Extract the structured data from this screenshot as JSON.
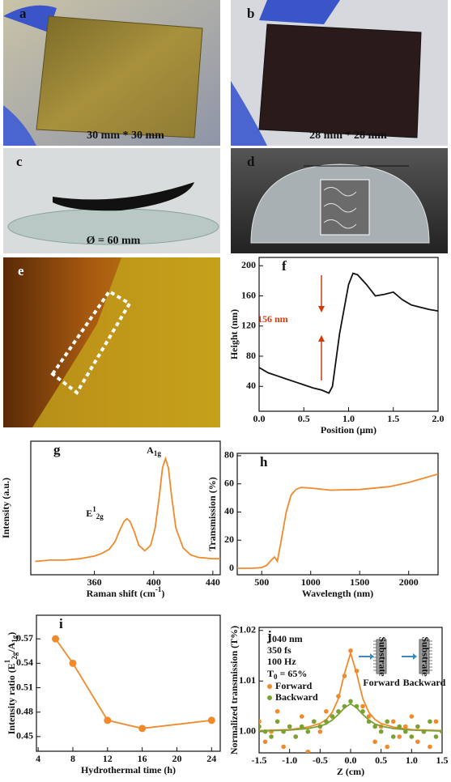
{
  "photos": [
    {
      "label": "a",
      "caption": "30 mm * 30 mm"
    },
    {
      "label": "b",
      "caption": "28 mm * 28 mm"
    },
    {
      "label": "c",
      "caption": "Ø = 60 mm"
    },
    {
      "label": "d"
    },
    {
      "label": "e"
    }
  ],
  "chart_data": [
    {
      "type": "line",
      "label": "f",
      "xlabel": "Position (μm)",
      "ylabel": "Height (nm)",
      "color": "#111111",
      "xlim": [
        0,
        2
      ],
      "ylim": [
        7,
        211
      ],
      "xticks": [
        {
          "value": 0,
          "label": "0.0"
        },
        0.5,
        {
          "value": 1,
          "label": "1.0"
        },
        1.5,
        {
          "value": 2,
          "label": "2.0"
        }
      ],
      "yticks": [
        40,
        80,
        120,
        160,
        200
      ],
      "annotations": [
        "156 nm"
      ],
      "series": [
        {
          "x": [
            0,
            0.1,
            0.2,
            0.3,
            0.4,
            0.5,
            0.6,
            0.7,
            0.78,
            0.82,
            0.9,
            1.0,
            1.05,
            1.1,
            1.2,
            1.3,
            1.4,
            1.5,
            1.6,
            1.7,
            1.8,
            1.9,
            2.0
          ],
          "values": [
            65,
            58,
            54,
            50,
            46,
            42,
            38,
            35,
            31,
            40,
            110,
            175,
            190,
            188,
            175,
            160,
            162,
            165,
            155,
            148,
            145,
            142,
            140
          ],
          "color": "#111111"
        }
      ]
    },
    {
      "type": "line",
      "label": "g",
      "xlabel": [
        {
          "t": "Raman shift (cm"
        },
        {
          "t": "-1",
          "s": "sup"
        },
        {
          "t": ")"
        }
      ],
      "ylabel": "Intensity (a.u.)",
      "xlim": [
        317,
        445
      ],
      "ylim": [
        0,
        1
      ],
      "xticks": [
        360,
        400,
        440
      ],
      "annotations": [
        [
          {
            "t": "E"
          },
          {
            "t": "1",
            "s": "sup"
          },
          {
            "t": "2g",
            "s": "sub"
          }
        ],
        [
          {
            "t": "A"
          },
          {
            "t": "1g",
            "s": "sub"
          }
        ]
      ],
      "series": [
        {
          "color": "#f08a2c",
          "x": [
            320,
            330,
            340,
            350,
            360,
            365,
            370,
            374,
            377,
            380,
            382,
            384,
            387,
            390,
            394,
            398,
            401,
            404,
            406,
            408,
            410,
            412,
            415,
            420,
            425,
            430,
            440,
            445
          ],
          "values": [
            0.1,
            0.11,
            0.11,
            0.12,
            0.14,
            0.16,
            0.19,
            0.25,
            0.33,
            0.4,
            0.42,
            0.4,
            0.32,
            0.22,
            0.18,
            0.22,
            0.35,
            0.6,
            0.8,
            0.87,
            0.8,
            0.6,
            0.35,
            0.2,
            0.15,
            0.13,
            0.12,
            0.12
          ]
        }
      ]
    },
    {
      "type": "line",
      "label": "h",
      "xlabel": "Wavelength (nm)",
      "ylabel": "Transmission (%)",
      "xlim": [
        250,
        2300
      ],
      "ylim": [
        -4.6,
        81.7
      ],
      "xticks": [
        500,
        1000,
        1500,
        2000
      ],
      "yticks": [
        0,
        20,
        40,
        60,
        80
      ],
      "series": [
        {
          "color": "#f08a2c",
          "x": [
            250,
            400,
            500,
            550,
            600,
            630,
            660,
            700,
            750,
            800,
            850,
            900,
            1000,
            1200,
            1500,
            1800,
            2000,
            2300
          ],
          "values": [
            0,
            0,
            0.5,
            2,
            6,
            8,
            5,
            20,
            40,
            52,
            56,
            57.5,
            57,
            55.5,
            56,
            58,
            61,
            67
          ]
        }
      ]
    },
    {
      "type": "line",
      "label": "i",
      "markers": true,
      "xlabel": "Hydrothermal time (h)",
      "ylabel": [
        {
          "t": "Intensity ratio (E"
        },
        {
          "t": "1",
          "s": "sup"
        },
        {
          "t": "2g",
          "s": "sub"
        },
        {
          "t": "/A"
        },
        {
          "t": "1g",
          "s": "sub"
        },
        {
          "t": ")"
        }
      ],
      "xlim": [
        3.8,
        25
      ],
      "ylim": [
        0.432,
        0.599
      ],
      "xticks": [
        4,
        8,
        12,
        16,
        20,
        24
      ],
      "yticks": [
        0.45,
        0.48,
        0.51,
        0.54,
        0.57
      ],
      "series": [
        {
          "color": "#f08a2c",
          "x": [
            6,
            8,
            12,
            16,
            24
          ],
          "values": [
            0.57,
            0.54,
            0.47,
            0.46,
            0.47
          ]
        }
      ]
    },
    {
      "type": "scatter",
      "label": "j",
      "xlabel": "Z (cm)",
      "ylabel": "Normalized transmission (T%)",
      "xlim": [
        -1.5,
        1.5
      ],
      "ylim": [
        0.9958,
        1.0206
      ],
      "xticks": [
        -1.5,
        {
          "value": -1,
          "label": "-1.0"
        },
        -0.5,
        {
          "value": 0,
          "label": "0.0"
        },
        0.5,
        {
          "value": 1,
          "label": "1.0"
        },
        1.5
      ],
      "yticks": [
        {
          "value": 1,
          "label": "1.00"
        },
        {
          "value": 1.01,
          "label": "1.01"
        },
        {
          "value": 1.02,
          "label": "1.02"
        }
      ],
      "annotations": [
        "1040 nm",
        "350 fs",
        "100 Hz",
        [
          {
            "t": "T"
          },
          {
            "t": "0",
            "s": "sub"
          },
          {
            "t": " = 65%"
          }
        ]
      ],
      "inset_labels": [
        "Substrate",
        "Substrate",
        "Forward",
        "Backward"
      ],
      "series": [
        {
          "name": "Forward",
          "color": "#f08a2c",
          "x": [
            -1.5,
            -1.4,
            -1.3,
            -1.2,
            -1.1,
            -1.0,
            -0.9,
            -0.8,
            -0.7,
            -0.6,
            -0.5,
            -0.4,
            -0.3,
            -0.2,
            -0.1,
            0,
            0.1,
            0.2,
            0.3,
            0.4,
            0.5,
            0.6,
            0.7,
            0.8,
            0.9,
            1.0,
            1.1,
            1.2,
            1.3,
            1.4,
            1.5
          ],
          "values": [
            1.002,
            0.998,
            1.0,
            1.004,
            0.997,
            1.001,
            0.999,
            1.003,
            0.996,
            1.002,
            1.0,
            1.004,
            1.003,
            1.007,
            1.011,
            1.016,
            1.012,
            1.005,
            1.003,
            0.998,
            1.001,
            0.997,
            1.002,
            0.999,
            1.001,
            1.003,
            0.998,
            1.0,
            0.997,
            1.002,
            1.0
          ],
          "fit": {
            "x": [
              -1.5,
              -1.0,
              -0.7,
              -0.5,
              -0.4,
              -0.3,
              -0.2,
              -0.1,
              0,
              0.1,
              0.2,
              0.3,
              0.4,
              0.5,
              0.7,
              1.0,
              1.5
            ],
            "values": [
              1.0002,
              1.0004,
              1.0009,
              1.0016,
              1.0024,
              1.0038,
              1.0065,
              1.0115,
              1.0155,
              1.0115,
              1.0065,
              1.0038,
              1.0024,
              1.0016,
              1.0009,
              1.0004,
              1.0002
            ]
          }
        },
        {
          "name": "Backward",
          "color": "#7aa132",
          "x": [
            -1.5,
            -1.4,
            -1.3,
            -1.2,
            -1.1,
            -1.0,
            -0.9,
            -0.8,
            -0.7,
            -0.6,
            -0.5,
            -0.4,
            -0.3,
            -0.2,
            -0.1,
            0,
            0.1,
            0.2,
            0.3,
            0.4,
            0.5,
            0.6,
            0.7,
            0.8,
            0.9,
            1.0,
            1.1,
            1.2,
            1.3,
            1.4,
            1.5
          ],
          "values": [
            1.001,
            1.0,
            0.999,
            1.002,
            1.0,
            1.001,
            0.999,
            1.001,
            1.0,
            1.002,
            1.001,
            1.002,
            1.003,
            1.004,
            1.005,
            1.006,
            1.005,
            1.004,
            1.002,
            1.001,
            1.0,
            1.002,
            0.999,
            1.001,
            1.0,
            0.999,
            1.001,
            1.0,
            1.002,
            0.999,
            1.0
          ],
          "fit": {
            "x": [
              -1.5,
              -1.0,
              -0.7,
              -0.5,
              -0.4,
              -0.3,
              -0.2,
              -0.1,
              0,
              0.1,
              0.2,
              0.3,
              0.4,
              0.5,
              0.7,
              1.0,
              1.5
            ],
            "values": [
              1.0001,
              1.0003,
              1.0006,
              1.0011,
              1.0015,
              1.0023,
              1.0034,
              1.0047,
              1.0055,
              1.0047,
              1.0034,
              1.0023,
              1.0015,
              1.0011,
              1.0006,
              1.0003,
              1.0001
            ]
          }
        }
      ]
    }
  ]
}
